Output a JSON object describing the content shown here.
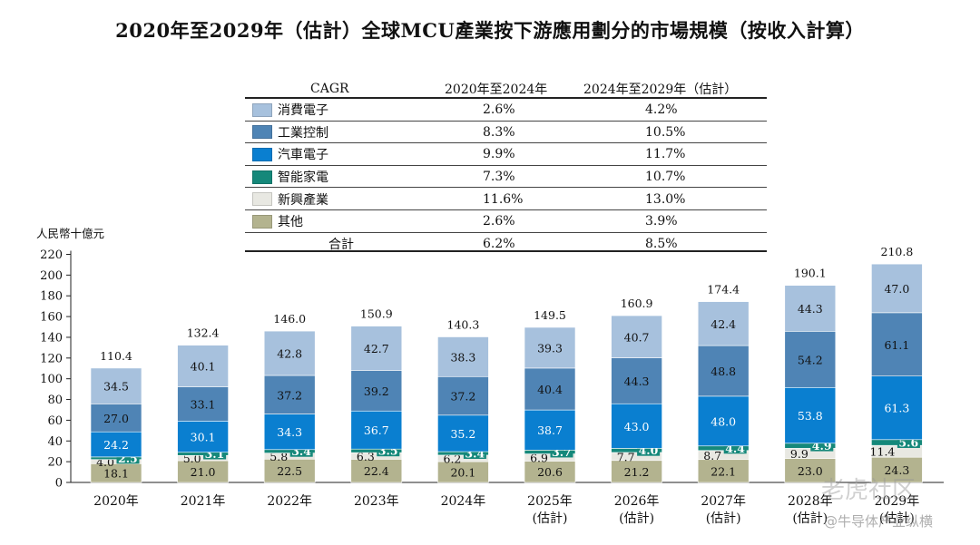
{
  "title": "2020年至2029年（估計）全球MCU產業按下游應用劃分的市場規模（按收入計算）",
  "legend_table": {
    "header": [
      "CAGR",
      "2020年至2024年",
      "2024年至2029年（估計）"
    ],
    "rows": [
      {
        "name": "消費電子",
        "cagr1": "2.6%",
        "cagr2": "4.2%"
      },
      {
        "name": "工業控制",
        "cagr1": "8.3%",
        "cagr2": "10.5%"
      },
      {
        "name": "汽車電子",
        "cagr1": "9.9%",
        "cagr2": "11.7%"
      },
      {
        "name": "智能家電",
        "cagr1": "7.3%",
        "cagr2": "10.7%"
      },
      {
        "name": "新興產業",
        "cagr1": "11.6%",
        "cagr2": "13.0%"
      },
      {
        "name": "其他",
        "cagr1": "2.6%",
        "cagr2": "3.9%"
      }
    ],
    "total": {
      "name": "合計",
      "cagr1": "6.2%",
      "cagr2": "8.5%"
    }
  },
  "chart_data": {
    "type": "bar",
    "stacked": true,
    "ylabel": "人民幣十億元",
    "ylim": [
      0,
      220
    ],
    "yticks": [
      0,
      20,
      40,
      60,
      80,
      100,
      120,
      140,
      160,
      180,
      200,
      220
    ],
    "categories": [
      "2020年",
      "2021年",
      "2022年",
      "2023年",
      "2024年",
      "2025年\n(估計)",
      "2026年\n(估計)",
      "2027年\n(估計)",
      "2028年\n(估計)",
      "2029年\n(估計)"
    ],
    "series": [
      {
        "name": "其他",
        "color": "#b3b38f",
        "values": [
          18.1,
          21.0,
          22.5,
          22.4,
          20.1,
          20.6,
          21.2,
          22.1,
          23.0,
          24.3
        ]
      },
      {
        "name": "新興產業",
        "color": "#e8e8e2",
        "values": [
          4.0,
          5.0,
          5.8,
          6.3,
          6.2,
          6.9,
          7.7,
          8.7,
          9.9,
          11.4
        ]
      },
      {
        "name": "智能家電",
        "color": "#15887a",
        "values": [
          2.5,
          3.1,
          3.4,
          3.5,
          3.4,
          3.7,
          4.0,
          4.4,
          4.9,
          5.6
        ]
      },
      {
        "name": "汽車電子",
        "color": "#0a7fd0",
        "values": [
          24.2,
          30.1,
          34.3,
          36.7,
          35.2,
          38.7,
          43.0,
          48.0,
          53.8,
          61.3
        ]
      },
      {
        "name": "工業控制",
        "color": "#4f84b5",
        "values": [
          27.0,
          33.1,
          37.2,
          39.2,
          37.2,
          40.4,
          44.3,
          48.8,
          54.2,
          61.1
        ]
      },
      {
        "name": "消費電子",
        "color": "#a7c1dd",
        "values": [
          34.5,
          40.1,
          42.8,
          42.7,
          38.3,
          39.3,
          40.7,
          42.4,
          44.3,
          47.0
        ]
      }
    ],
    "totals": [
      110.4,
      132.4,
      146.0,
      150.9,
      140.3,
      149.5,
      160.9,
      174.4,
      190.1,
      210.8
    ]
  },
  "watermark": {
    "line1": "老虎社区",
    "line2": "@牛导体产业纵横"
  }
}
